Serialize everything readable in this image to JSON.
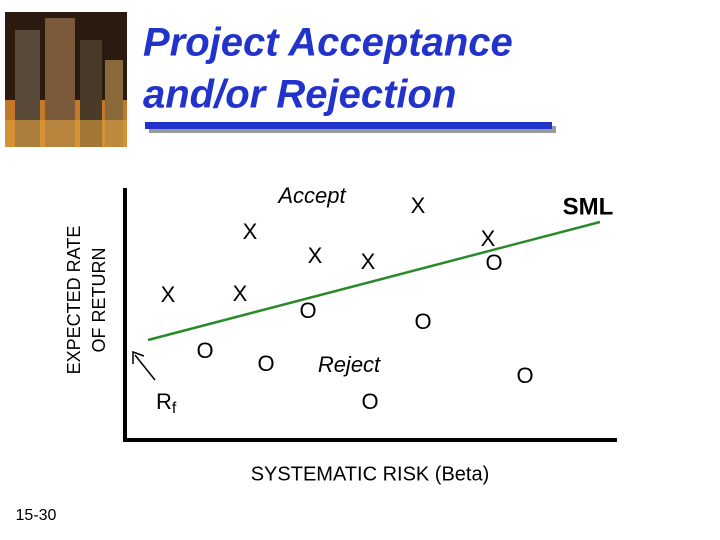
{
  "title": {
    "line1": "Project Acceptance",
    "line2": "and/or Rejection"
  },
  "y_axis_label": {
    "line1": "EXPECTED RATE",
    "line2": "OF RETURN"
  },
  "x_axis_label": "SYSTEMATIC RISK (Beta)",
  "line_label": "SML",
  "accept_label": "Accept",
  "reject_label": "Reject",
  "risk_free": {
    "main": "R",
    "sub": "f"
  },
  "accept_markers": [
    "X",
    "X",
    "X",
    "X",
    "X",
    "X",
    "X"
  ],
  "reject_markers": [
    "O",
    "O",
    "O",
    "O",
    "O",
    "O",
    "O"
  ],
  "slide_number": "15-30"
}
